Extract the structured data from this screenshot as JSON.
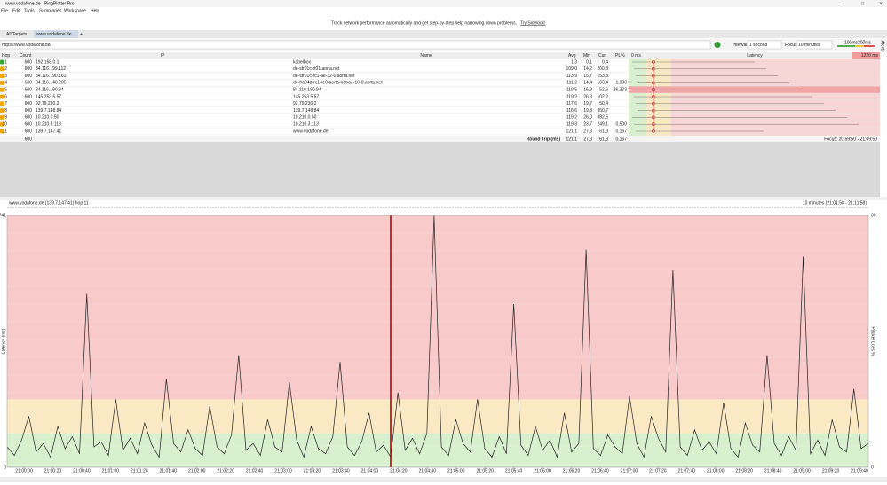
{
  "window": {
    "title": "www.vodafone.de - PingPlotter Pro"
  },
  "menu": [
    "File",
    "Edit",
    "Tools",
    "Summaries",
    "Workspace",
    "Help"
  ],
  "banner": {
    "text": "Track network performance automatically and get step-by-step help narrowing down problems.",
    "link": "Try Sidekick!"
  },
  "tabs": [
    "All Targets",
    "www.vodafone.de"
  ],
  "address": "https://www.vodafone.de/",
  "toolbar": {
    "interval_label": "Interval",
    "interval": "1 second",
    "focus_label": "Focus",
    "focus": "10 minutes",
    "scale_low": "100ms",
    "scale_high": "200ms",
    "alerts": "Alerts"
  },
  "table": {
    "columns": [
      "Hop",
      "Count",
      "IP",
      "Name",
      "Avg",
      "Min",
      "Cur",
      "PL%"
    ],
    "latency_header": {
      "min": "0 ms",
      "title": "Latency",
      "max": "1220 ms"
    },
    "rows": [
      {
        "hop": "1",
        "count": "600",
        "ip": "192.168.0.1",
        "name": "kabelbox",
        "avg": "1,3",
        "min": "0,1",
        "cur": "0,4"
      },
      {
        "hop": "2",
        "count": "600",
        "ip": "84.116.199.112",
        "name": "de-str01c-rt01.aorta.net",
        "avg": "109,0",
        "min": "14,2",
        "cur": "200,8"
      },
      {
        "hop": "3",
        "count": "600",
        "ip": "84.116.190.161",
        "name": "de-str01c-rc1-ae-32-0.aorta.net",
        "avg": "113,9",
        "min": "15,7",
        "cur": "153,8"
      },
      {
        "hop": "4",
        "count": "600",
        "ip": "84.116.140.205",
        "name": "de-fra04d-rc1-re0-aorta-net-ae-10-0.aorta.net",
        "avg": "111,2",
        "min": "14,4",
        "cur": "103,4",
        "pl": "1,833"
      },
      {
        "hop": "5",
        "count": "600",
        "ip": "84.116.190.94",
        "name": "84.116.190.94",
        "avg": "119,5",
        "min": "16,9",
        "cur": "52,6",
        "pl": "36,333"
      },
      {
        "hop": "6",
        "count": "600",
        "ip": "145.253.5.57",
        "name": "145.253.5.57",
        "avg": "119,2",
        "min": "26,3",
        "cur": "102,2"
      },
      {
        "hop": "7",
        "count": "600",
        "ip": "92.79.230.2",
        "name": "92.79.230.2",
        "avg": "117,6",
        "min": "19,7",
        "cur": "50,4"
      },
      {
        "hop": "8",
        "count": "600",
        "ip": "139.7.148.84",
        "name": "139.7.148.84",
        "avg": "116,6",
        "min": "19,8",
        "cur": "350,7"
      },
      {
        "hop": "9",
        "count": "600",
        "ip": "10.210.0.50",
        "name": "10.210.0.50",
        "avg": "119,2",
        "min": "26,0",
        "cur": "382,6"
      },
      {
        "hop": "10",
        "count": "600",
        "ip": "10.210.3.113",
        "name": "10.210.3.113",
        "avg": "119,3",
        "min": "23,7",
        "cur": "249,1",
        "pl": "0,500"
      },
      {
        "hop": "11",
        "count": "600",
        "ip": "139.7.147.41",
        "name": "www.vodafone.de",
        "avg": "121,1",
        "min": "27,3",
        "cur": "61,8",
        "pl": "0,167"
      }
    ],
    "footer": {
      "count": "600",
      "label": "Round Trip (ms)",
      "avg": "121,1",
      "min": "27,3",
      "cur": "61,8",
      "pl": "0,167",
      "focus": "Focus: 20:59:50 - 21:09:50"
    }
  },
  "chart_data": {
    "type": "line",
    "title": "www.vodafone.de (139.7.147.41) hop 11",
    "range": "10 minutes (21:01:58 - 21:11:58)",
    "y_label": "Latency (ms)",
    "y2_label": "Packet Loss %",
    "ylim": [
      0,
      741
    ],
    "yticks": [
      0,
      741
    ],
    "y2lim": [
      0,
      30
    ],
    "y2ticks": [
      0,
      30
    ],
    "thresholds": [
      {
        "value": 100,
        "color": "#d9f0cf"
      },
      {
        "value": 200,
        "color": "#fbe9c4"
      },
      {
        "value": 741,
        "color": "#f8caca"
      }
    ],
    "color": "#222222",
    "xtick_labels": [
      "21:00:00",
      "21:00:20",
      "21:00:40",
      "21:01:00",
      "21:01:20",
      "21:01:40",
      "21:02:00",
      "21:02:20",
      "21:02:40",
      "21:03:00",
      "21:03:20",
      "21:03:40",
      "21:04:00",
      "21:04:20",
      "21:04:40",
      "21:05:00",
      "21:05:20",
      "21:05:40",
      "21:06:00",
      "21:06:20",
      "21:06:40",
      "21:07:00",
      "21:07:20",
      "21:07:40",
      "21:08:00",
      "21:08:20",
      "21:08:40",
      "21:09:00",
      "21:09:20",
      "21:09:40"
    ],
    "values": [
      60,
      35,
      80,
      150,
      45,
      70,
      30,
      120,
      55,
      90,
      40,
      510,
      60,
      75,
      35,
      200,
      50,
      85,
      40,
      130,
      65,
      30,
      260,
      70,
      45,
      110,
      55,
      35,
      180,
      60,
      40,
      95,
      330,
      50,
      70,
      35,
      140,
      60,
      45,
      250,
      80,
      30,
      120,
      55,
      40,
      90,
      310,
      60,
      35,
      75,
      160,
      45,
      65,
      30,
      220,
      50,
      85,
      40,
      100,
      740,
      60,
      35,
      140,
      70,
      45,
      200,
      55,
      30,
      90,
      40,
      480,
      65,
      35,
      120,
      50,
      80,
      30,
      160,
      45,
      70,
      640,
      55,
      35,
      95,
      60,
      40,
      210,
      70,
      30,
      150,
      85,
      45,
      580,
      60,
      35,
      110,
      50,
      75,
      40,
      190,
      55,
      30,
      130,
      65,
      45,
      330,
      70,
      35,
      90,
      50,
      620,
      40,
      80,
      35,
      140,
      60,
      45,
      230,
      55,
      70
    ]
  }
}
